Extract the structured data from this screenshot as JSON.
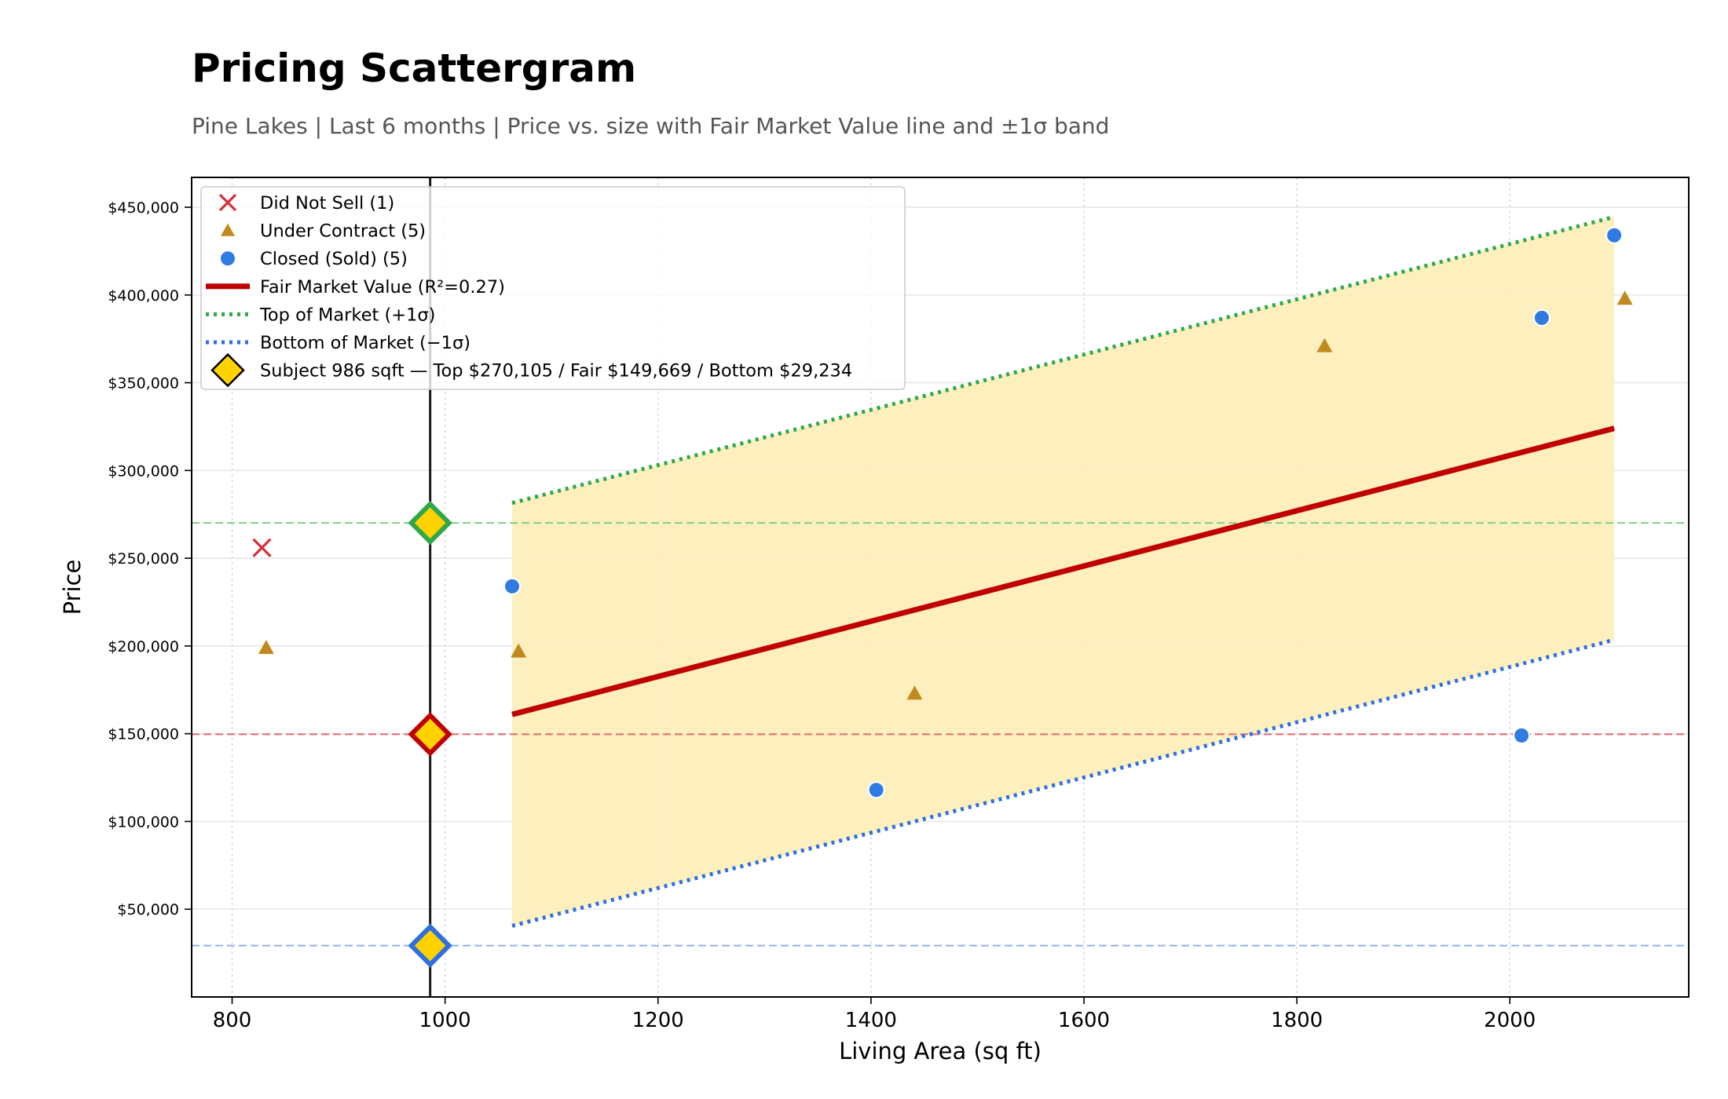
{
  "header": {
    "title": "Pricing Scattergram",
    "subtitle": "Pine Lakes  |  Last 6 months  |  Price vs. size with Fair Market Value line and ±1σ band"
  },
  "colors": {
    "did_not_sell": "#d62f3a",
    "under_contract": "#c08a1e",
    "closed": "#2f7be2",
    "fmv_line": "#c00000",
    "top_line": "#2ea84a",
    "bottom_line": "#2f6fe0",
    "band_fill": "#fdeebb",
    "subject_fill": "#ffd200",
    "grid": "#e4e4e4"
  },
  "chart_data": {
    "type": "scatter",
    "xlabel": "Living Area (sq ft)",
    "ylabel": "Price",
    "xlim": [
      762,
      2168
    ],
    "ylim": [
      0,
      467000
    ],
    "xticks": [
      {
        "value": 800,
        "label": "800"
      },
      {
        "value": 1000,
        "label": "1000"
      },
      {
        "value": 1200,
        "label": "1200"
      },
      {
        "value": 1400,
        "label": "1400"
      },
      {
        "value": 1600,
        "label": "1600"
      },
      {
        "value": 1800,
        "label": "1800"
      },
      {
        "value": 2000,
        "label": "2000"
      }
    ],
    "yticks": [
      {
        "value": 50000,
        "label": "$50,000"
      },
      {
        "value": 100000,
        "label": "$100,000"
      },
      {
        "value": 150000,
        "label": "$150,000"
      },
      {
        "value": 200000,
        "label": "$200,000"
      },
      {
        "value": 250000,
        "label": "$250,000"
      },
      {
        "value": 300000,
        "label": "$300,000"
      },
      {
        "value": 350000,
        "label": "$350,000"
      },
      {
        "value": 400000,
        "label": "$400,000"
      },
      {
        "value": 450000,
        "label": "$450,000"
      }
    ],
    "grid": true,
    "legend_position": "top-left",
    "series": [
      {
        "name": "Did Not Sell (1)",
        "marker": "x",
        "color": "#d62f3a",
        "points": [
          [
            828,
            256000
          ]
        ]
      },
      {
        "name": "Under Contract (5)",
        "marker": "triangle",
        "color": "#c08a1e",
        "points": [
          [
            832,
            199000
          ],
          [
            1069,
            197000
          ],
          [
            1441,
            173000
          ],
          [
            1826,
            371000
          ],
          [
            2108,
            398000
          ]
        ]
      },
      {
        "name": "Closed (Sold) (5)",
        "marker": "circle",
        "color": "#2f7be2",
        "points": [
          [
            1063,
            234000
          ],
          [
            1405,
            118000
          ],
          [
            2011,
            149000
          ],
          [
            2030,
            387000
          ],
          [
            2098,
            434000
          ]
        ]
      }
    ],
    "fair_market_value": {
      "name": "Fair Market Value (R²=0.27)",
      "x": [
        1063,
        2098
      ],
      "y": [
        161000,
        324000
      ]
    },
    "top_of_market": {
      "name": "Top of Market (+1σ)",
      "x": [
        1063,
        2098
      ],
      "y": [
        281500,
        444500
      ]
    },
    "bottom_of_market": {
      "name": "Bottom of Market (−1σ)",
      "x": [
        1063,
        2098
      ],
      "y": [
        40500,
        203500
      ]
    },
    "subject": {
      "name": "Subject 986 sqft  —  Top $270,105 / Fair $149,669 / Bottom $29,234",
      "sqft": 986,
      "top": 270105,
      "fair": 149669,
      "bottom": 29234
    }
  }
}
